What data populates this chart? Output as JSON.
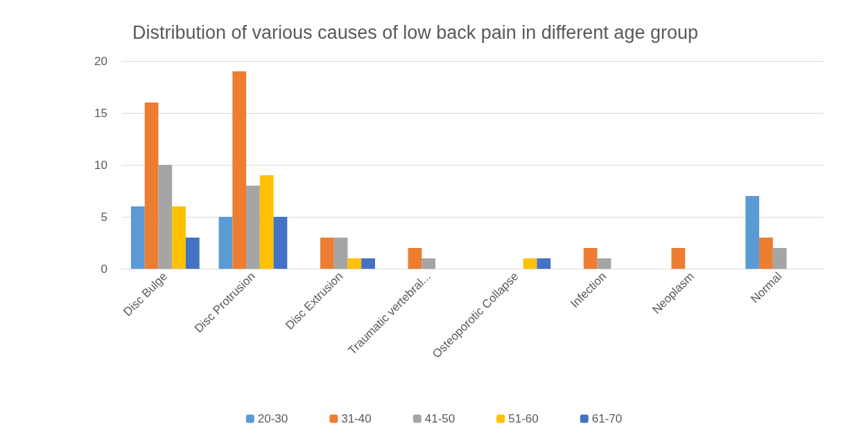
{
  "chart_data": {
    "type": "bar",
    "title": "Distribution of various causes of low back pain in different age group",
    "categories": [
      "Disc Bulge",
      "Disc Protrusion",
      "Disc Extrusion",
      "Traumatic vertebral...",
      "Osteoporotic Collapse",
      "Infection",
      "Neoplasm",
      "Normal"
    ],
    "series": [
      {
        "name": "20-30",
        "color": "#5b9bd5",
        "values": [
          6,
          5,
          0,
          0,
          0,
          0,
          0,
          7
        ]
      },
      {
        "name": "31-40",
        "color": "#ed7d31",
        "values": [
          16,
          19,
          3,
          2,
          0,
          2,
          2,
          3
        ]
      },
      {
        "name": "41-50",
        "color": "#a5a5a5",
        "values": [
          10,
          8,
          3,
          1,
          0,
          1,
          0,
          2
        ]
      },
      {
        "name": "51-60",
        "color": "#ffc000",
        "values": [
          6,
          9,
          1,
          0,
          1,
          0,
          0,
          0
        ]
      },
      {
        "name": "61-70",
        "color": "#4472c4",
        "values": [
          3,
          5,
          1,
          0,
          1,
          0,
          0,
          0
        ]
      }
    ],
    "ylim": [
      0,
      20
    ],
    "yticks": [
      0,
      5,
      10,
      15,
      20
    ],
    "grid": "y",
    "legend": "bottom"
  }
}
